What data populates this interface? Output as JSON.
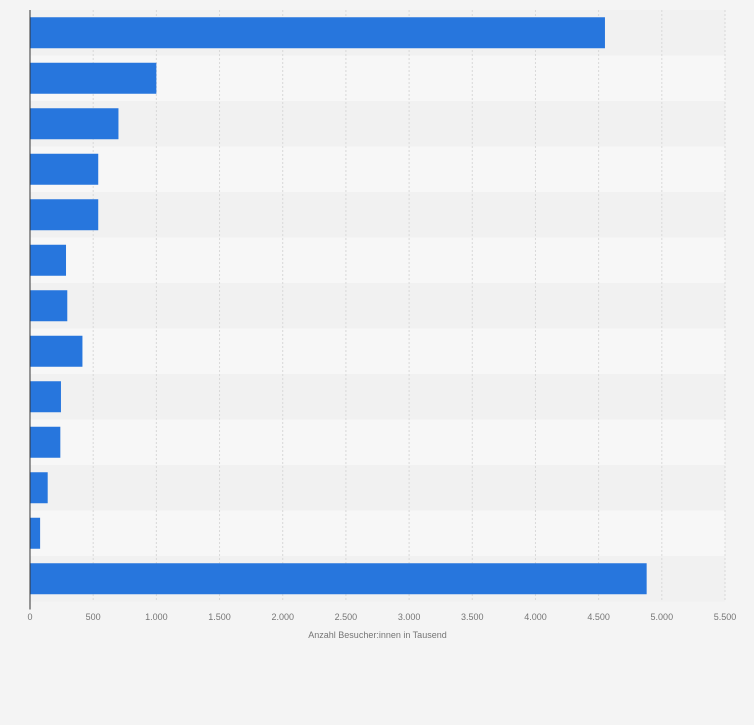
{
  "colors": {
    "background": "#f4f4f4",
    "bar": "#2776dd",
    "band_light": "#f7f7f7",
    "band_dark": "#f1f1f1",
    "grid": "#d8d8d8",
    "axis": "#333333",
    "tick_text": "#757575"
  },
  "chart_data": {
    "type": "bar",
    "orientation": "horizontal",
    "categories": [
      "",
      "",
      "",
      "",
      "",
      "",
      "",
      "",
      "",
      "",
      "",
      "",
      ""
    ],
    "values": [
      4550,
      1000,
      700,
      540,
      540,
      285,
      295,
      415,
      245,
      240,
      140,
      80,
      4880
    ],
    "xlabel": "Anzahl Besucher:innen in Tausend",
    "ylabel": "",
    "xlim": [
      0,
      5500
    ],
    "xticks": [
      0,
      500,
      1000,
      1500,
      2000,
      2500,
      3000,
      3500,
      4000,
      4500,
      5000,
      5500
    ],
    "xtick_labels": [
      "0",
      "500",
      "1.000",
      "1.500",
      "2.000",
      "2.500",
      "3.000",
      "3.500",
      "4.000",
      "4.500",
      "5.000",
      "5.500"
    ],
    "grid": true,
    "legend": "none"
  }
}
